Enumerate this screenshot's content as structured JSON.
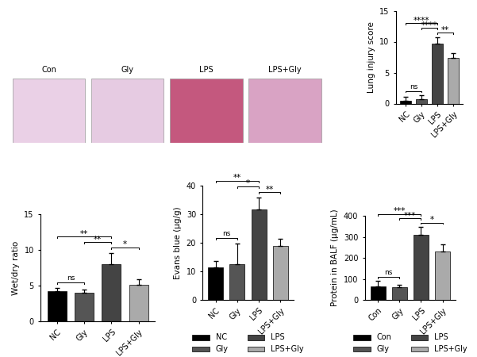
{
  "chart_data": [
    {
      "type": "image",
      "labels": [
        "Con",
        "Gly",
        "LPS",
        "LPS+Gly"
      ],
      "colors": [
        "#ead0e6",
        "#e6cbe2",
        "#c4587e",
        "#d9a3c4"
      ]
    },
    {
      "type": "bar",
      "y_label": "Lung injury score",
      "categories": [
        "NC",
        "Gly",
        "LPS",
        "LPS+Gly"
      ],
      "values": [
        0.5,
        0.7,
        9.7,
        7.4
      ],
      "errors": [
        0.6,
        0.6,
        1.0,
        0.7
      ],
      "colors": [
        "#000000",
        "#555555",
        "#444444",
        "#aaaaaa"
      ],
      "ylim": [
        0,
        15
      ],
      "yticks": [
        0,
        5,
        10,
        15
      ],
      "significance": [
        {
          "pair": [
            0,
            1
          ],
          "label": "ns"
        },
        {
          "pair": [
            2,
            3
          ],
          "label": "**"
        },
        {
          "pair": [
            1,
            2
          ],
          "label": "****"
        },
        {
          "pair": [
            0,
            2
          ],
          "label": "****"
        }
      ]
    },
    {
      "type": "bar",
      "y_label": "Wet/dry ratio",
      "categories": [
        "NC",
        "Gly",
        "LPS",
        "LPS+Gly"
      ],
      "values": [
        4.2,
        4.0,
        8.0,
        5.1
      ],
      "errors": [
        0.5,
        0.4,
        1.6,
        0.8
      ],
      "colors": [
        "#000000",
        "#555555",
        "#444444",
        "#aaaaaa"
      ],
      "ylim": [
        0,
        15
      ],
      "yticks": [
        0,
        5,
        10,
        15
      ],
      "significance": [
        {
          "pair": [
            0,
            1
          ],
          "label": "ns"
        },
        {
          "pair": [
            2,
            3
          ],
          "label": "*"
        },
        {
          "pair": [
            1,
            2
          ],
          "label": "**"
        },
        {
          "pair": [
            0,
            2
          ],
          "label": "**"
        }
      ]
    },
    {
      "type": "bar",
      "y_label": "Evans blue (μg/g)",
      "categories": [
        "NC",
        "Gly",
        "LPS",
        "LPS+Gly"
      ],
      "values": [
        11.3,
        12.5,
        31.8,
        18.8
      ],
      "errors": [
        2.2,
        7.2,
        4.0,
        2.5
      ],
      "colors": [
        "#000000",
        "#555555",
        "#444444",
        "#aaaaaa"
      ],
      "ylim": [
        0,
        40
      ],
      "yticks": [
        0,
        10,
        20,
        30,
        40
      ],
      "legend": "bottom",
      "significance": [
        {
          "pair": [
            0,
            1
          ],
          "label": "ns"
        },
        {
          "pair": [
            2,
            3
          ],
          "label": "**"
        },
        {
          "pair": [
            1,
            2
          ],
          "label": "*"
        },
        {
          "pair": [
            0,
            2
          ],
          "label": "**"
        }
      ]
    },
    {
      "type": "bar",
      "y_label": "Protein in BALF (μg/mL)",
      "categories": [
        "Con",
        "Gly",
        "LPS",
        "LPS+Gly"
      ],
      "values": [
        65,
        60,
        310,
        232
      ],
      "errors": [
        25,
        10,
        38,
        32
      ],
      "colors": [
        "#000000",
        "#555555",
        "#444444",
        "#aaaaaa"
      ],
      "ylim": [
        0,
        400
      ],
      "yticks": [
        0,
        100,
        200,
        300,
        400
      ],
      "legend": "bottom",
      "significance": [
        {
          "pair": [
            0,
            1
          ],
          "label": "ns"
        },
        {
          "pair": [
            2,
            3
          ],
          "label": "*"
        },
        {
          "pair": [
            1,
            2
          ],
          "label": "***"
        },
        {
          "pair": [
            0,
            2
          ],
          "label": "***"
        }
      ]
    }
  ]
}
